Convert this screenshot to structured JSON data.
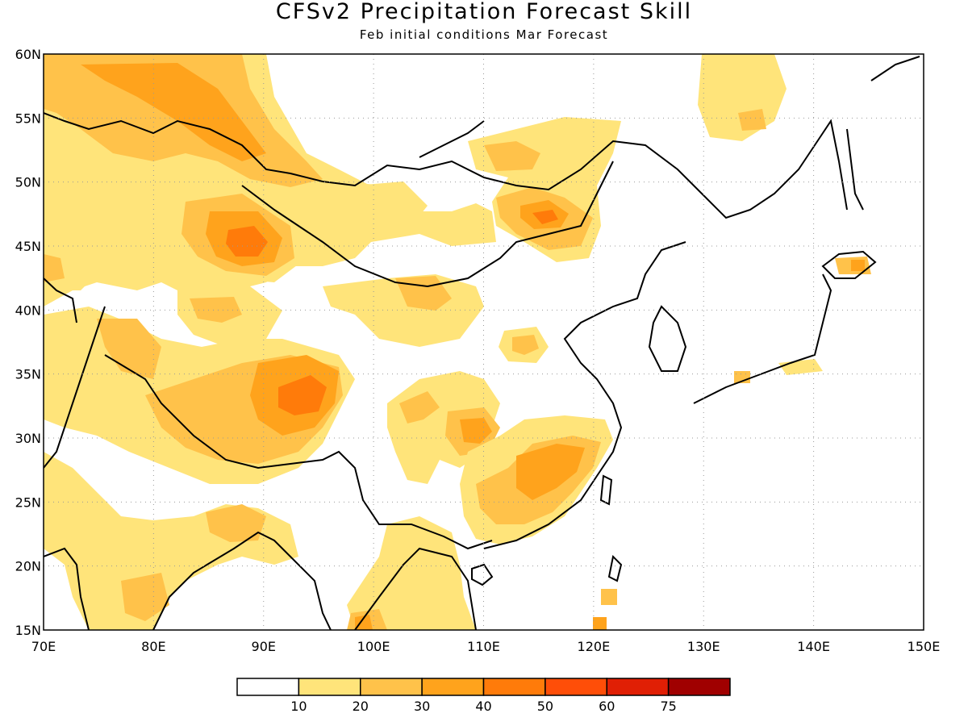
{
  "title": "CFSv2 Precipitation Forecast Skill",
  "subtitle": "Feb initial conditions  Mar Forecast",
  "map": {
    "lon_range": [
      70,
      150
    ],
    "lat_range": [
      15,
      60
    ],
    "lat_ticks": [
      "60N",
      "55N",
      "50N",
      "45N",
      "40N",
      "35N",
      "30N",
      "25N",
      "20N",
      "15N"
    ],
    "lon_ticks": [
      "70E",
      "80E",
      "90E",
      "100E",
      "110E",
      "120E",
      "130E",
      "140E",
      "150E"
    ],
    "grid": "dotted"
  },
  "legend": {
    "labels": [
      "10",
      "20",
      "30",
      "40",
      "50",
      "60",
      "75"
    ],
    "colors": [
      "#ffffff",
      "#ffe47a",
      "#ffc24a",
      "#ffa31c",
      "#ff7b0a",
      "#ff4e08",
      "#e01f05",
      "#a00000"
    ]
  },
  "regions": [
    {
      "name": "northwest",
      "color": "#ffe47a"
    },
    {
      "name": "west-siberia",
      "color": "#ffc24a"
    },
    {
      "name": "west-siberia-core",
      "color": "#ffa31c"
    },
    {
      "name": "mongolia-west",
      "color": "#ffe47a"
    },
    {
      "name": "mongolia-west-mid",
      "color": "#ffc24a"
    },
    {
      "name": "mongolia-west-core",
      "color": "#ffa31c"
    },
    {
      "name": "mongolia-west-peak",
      "color": "#ff7b0a"
    },
    {
      "name": "tibet",
      "color": "#ffe47a"
    },
    {
      "name": "tibet-mid",
      "color": "#ffc24a"
    },
    {
      "name": "tibet-core",
      "color": "#ffa31c"
    },
    {
      "name": "tibet-peak",
      "color": "#ff7b0a"
    },
    {
      "name": "southeast-china",
      "color": "#ffe47a"
    },
    {
      "name": "southeast-china-mid",
      "color": "#ffc24a"
    },
    {
      "name": "southeast-china-core",
      "color": "#ffa31c"
    },
    {
      "name": "northeast-china",
      "color": "#ffe47a"
    },
    {
      "name": "northeast-china-mid",
      "color": "#ffc24a"
    },
    {
      "name": "northeast-china-core",
      "color": "#ffa31c"
    },
    {
      "name": "sichuan",
      "color": "#ffe47a"
    },
    {
      "name": "sichuan-mid",
      "color": "#ffc24a"
    },
    {
      "name": "sichuan-core",
      "color": "#ffa31c"
    },
    {
      "name": "inner-mongolia",
      "color": "#ffe47a"
    },
    {
      "name": "inner-mongolia-mid",
      "color": "#ffc24a"
    },
    {
      "name": "far-east",
      "color": "#ffe47a"
    },
    {
      "name": "india",
      "color": "#ffe47a"
    },
    {
      "name": "india-mid",
      "color": "#ffc24a"
    },
    {
      "name": "indochina",
      "color": "#ffe47a"
    },
    {
      "name": "hokkaido",
      "color": "#ffc24a"
    }
  ]
}
